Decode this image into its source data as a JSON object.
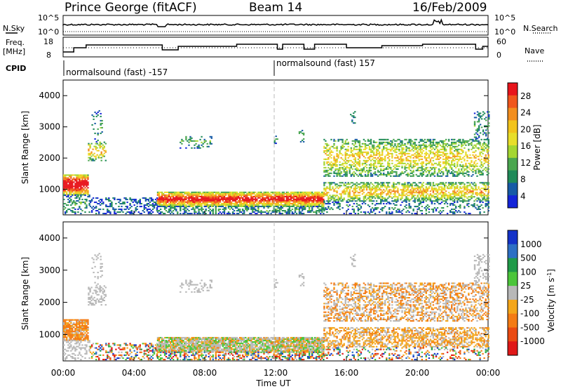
{
  "header": {
    "station": "Prince George (fitACF)",
    "beam": "Beam 14",
    "date": "16/Feb/2009"
  },
  "summary_panels": {
    "nsky_label": "N.Sky",
    "nsky_ticks": [
      "10^5",
      "10^0"
    ],
    "nsearch_label": "N.Search",
    "nsearch_ticks": [
      "10^5",
      "10^0"
    ],
    "freq_label_line1": "Freq.",
    "freq_label_line2": "[MHz]",
    "freq_ticks": [
      "18",
      "8"
    ],
    "nave_label": "Nave",
    "nave_ticks": [
      "60",
      "0"
    ],
    "cpid_label": "CPID",
    "cpid_segments": [
      "normalsound (fast) -157",
      "normalsound (fast) 157"
    ]
  },
  "colors": {
    "velocity_ground": "#bdbdbd",
    "power_low": "#1c3cd0",
    "power_high": "#e01010",
    "terminator_line": "#bbbbbb"
  },
  "chart_data": [
    {
      "type": "heatmap",
      "title": "",
      "xlabel": "",
      "ylabel": "Slant Range [km]",
      "xlim": [
        0,
        24
      ],
      "ylim": [
        180,
        4500
      ],
      "yticks": [
        "1000",
        "2000",
        "3000",
        "4000"
      ],
      "colorbar": {
        "label": "Power [dB]",
        "ticks": [
          "28",
          "24",
          "20",
          "16",
          "12",
          "8",
          "4"
        ],
        "colors": [
          "#e8141b",
          "#f0561c",
          "#f28e1e",
          "#f2c31b",
          "#e8de2a",
          "#a4d631",
          "#4aa64f",
          "#1f8a59",
          "#165aa6",
          "#1424d8"
        ]
      }
    },
    {
      "type": "heatmap",
      "title": "",
      "xlabel": "Time UT",
      "ylabel": "Slant Range [km]",
      "xlim": [
        0,
        24
      ],
      "ylim": [
        180,
        4500
      ],
      "xticks": [
        "00:00",
        "04:00",
        "08:00",
        "12:00",
        "16:00",
        "20:00",
        "00:00"
      ],
      "yticks": [
        "1000",
        "2000",
        "3000",
        "4000"
      ],
      "colorbar": {
        "label": "Velocity [m s",
        "label_exponent": "-1",
        "label_close": "]",
        "ticks": [
          "1000",
          "500",
          "100",
          "25",
          "-25",
          "-100",
          "-500",
          "-1000"
        ],
        "colors": [
          "#1432c8",
          "#2d6fc4",
          "#1f9a48",
          "#4bc53a",
          "#b8b8b8",
          "#f4a61a",
          "#f47b14",
          "#ea4a12",
          "#e01818"
        ]
      }
    }
  ]
}
